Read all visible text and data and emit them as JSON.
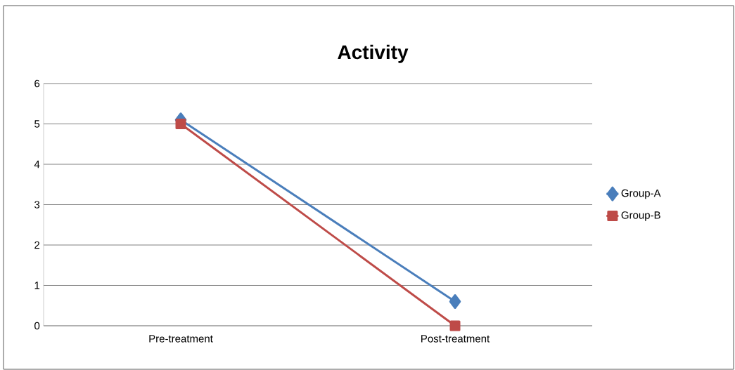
{
  "chart_data": {
    "type": "line",
    "title": "Activity",
    "categories": [
      "Pre-treatment",
      "Post-treatment"
    ],
    "series": [
      {
        "name": "Group-A",
        "color": "#4a7ebb",
        "values": [
          5.1,
          0.6
        ],
        "marker": "diamond"
      },
      {
        "name": "Group-B",
        "color": "#be4b48",
        "values": [
          5.0,
          0.0
        ],
        "marker": "square"
      }
    ],
    "ylim": [
      0,
      6
    ],
    "yticks": [
      0,
      1,
      2,
      3,
      4,
      5,
      6
    ],
    "grid": "y",
    "legend": "right",
    "line_style": "solid"
  }
}
